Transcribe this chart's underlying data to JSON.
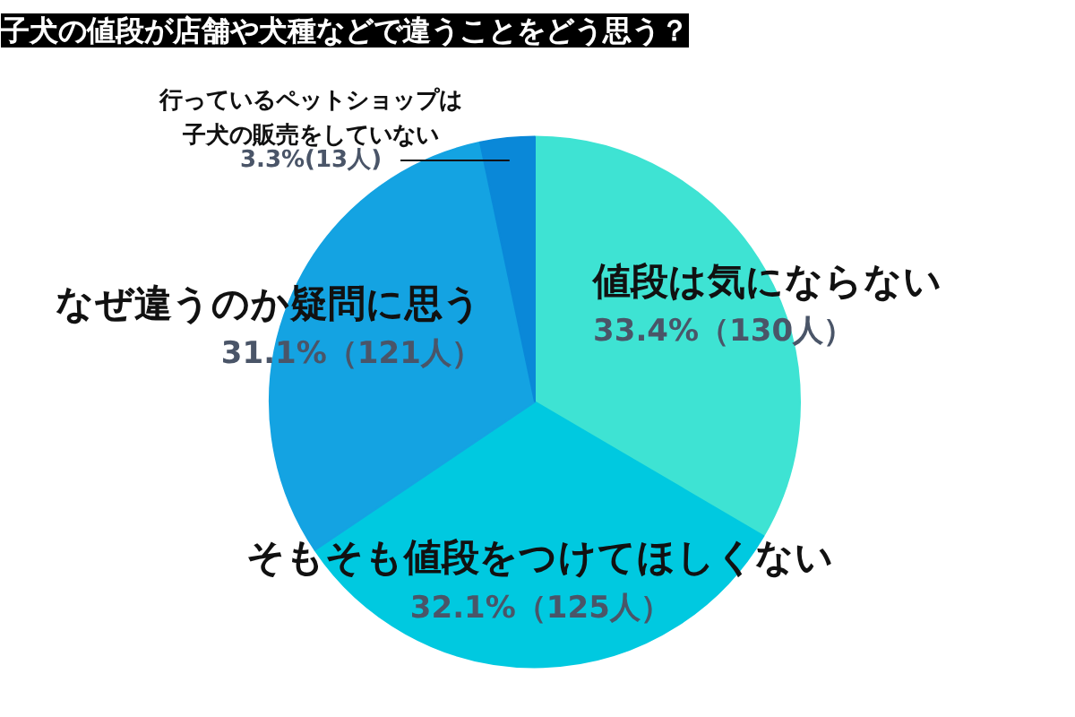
{
  "chart_data": {
    "type": "pie",
    "title": "子犬の値段が店舗や犬種などで違うことをどう思う？",
    "categories": [
      "値段は気にならない",
      "そもそも値段をつけてほしくない",
      "なぜ違うのか疑問に思う",
      "行っているペットショップは子犬の販売をしていない"
    ],
    "values": [
      33.4,
      32.1,
      31.1,
      3.3
    ],
    "value_labels": [
      "33.4%（130人）",
      "32.1%（125人）",
      "31.1%（121人）",
      "3.3%(13人)"
    ],
    "colors": [
      "#3ee3d3",
      "#00c9e0",
      "#14a3e2",
      "#0a88d8"
    ]
  }
}
